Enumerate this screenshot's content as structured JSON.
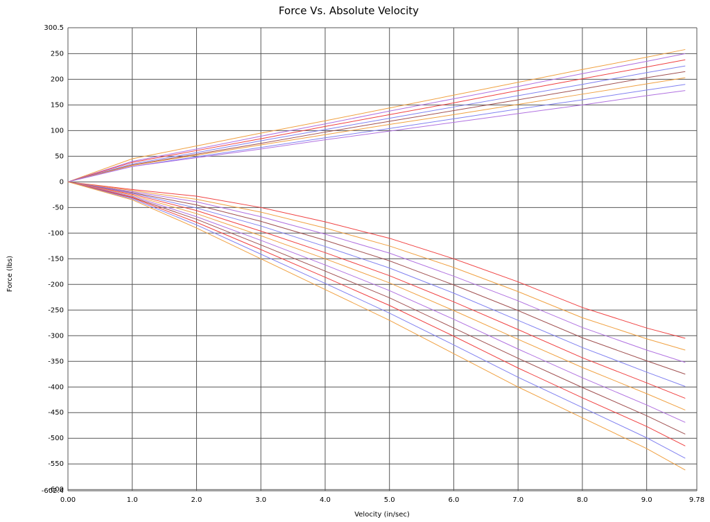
{
  "chart_data": {
    "type": "line",
    "title": "Force Vs. Absolute Velocity",
    "x_label": "Velocity (in/sec)",
    "y_label": "Force (lbs)",
    "grid": true,
    "xlim": [
      0,
      9.78
    ],
    "xticks": [
      {
        "value": 0,
        "label": "0.00"
      },
      {
        "value": 1,
        "label": "1.0"
      },
      {
        "value": 2,
        "label": "2.0"
      },
      {
        "value": 3,
        "label": "3.0"
      },
      {
        "value": 4,
        "label": "4.0"
      },
      {
        "value": 5,
        "label": "5.0"
      },
      {
        "value": 6,
        "label": "6.0"
      },
      {
        "value": 7,
        "label": "7.0"
      },
      {
        "value": 8,
        "label": "8.0"
      },
      {
        "value": 9,
        "label": "9.0"
      },
      9.78
    ],
    "ylim": [
      -602.4,
      300.5
    ],
    "yticks": [
      300.5,
      250,
      200,
      150,
      100,
      50,
      0,
      -50,
      -100,
      -150,
      -200,
      -250,
      -300,
      -350,
      -400,
      -450,
      -500,
      -550,
      -600,
      -602.4
    ],
    "x": [
      0,
      1,
      2,
      3,
      4,
      5,
      6,
      7,
      8,
      9,
      9.6
    ],
    "series": [
      {
        "color": "#f0a040",
        "values": [
          0,
          45,
          70,
          95,
          119,
          144,
          169,
          194,
          219,
          243,
          258
        ]
      },
      {
        "color": "#b070e0",
        "values": [
          0,
          40,
          64,
          89,
          113,
          138,
          162,
          186,
          211,
          235,
          250
        ]
      },
      {
        "color": "#f04040",
        "values": [
          0,
          38,
          61,
          84,
          108,
          131,
          154,
          178,
          201,
          224,
          238
        ]
      },
      {
        "color": "#8080f0",
        "values": [
          0,
          35,
          57,
          80,
          102,
          124,
          146,
          168,
          190,
          213,
          226
        ]
      },
      {
        "color": "#a05050",
        "values": [
          0,
          33,
          54,
          75,
          97,
          118,
          139,
          160,
          181,
          203,
          215
        ]
      },
      {
        "color": "#f0a040",
        "values": [
          0,
          32,
          52,
          72,
          92,
          112,
          131,
          151,
          171,
          191,
          203
        ]
      },
      {
        "color": "#8080f0",
        "values": [
          0,
          30,
          49,
          67,
          86,
          104,
          123,
          142,
          160,
          179,
          190
        ]
      },
      {
        "color": "#b070e0",
        "values": [
          0,
          30,
          47,
          64,
          82,
          99,
          116,
          133,
          150,
          168,
          178
        ]
      },
      {
        "color": "#f04040",
        "values": [
          0,
          -15,
          -28,
          -50,
          -78,
          -110,
          -150,
          -195,
          -245,
          -285,
          -305
        ]
      },
      {
        "color": "#f0a040",
        "values": [
          0,
          -17,
          -34,
          -59,
          -90,
          -125,
          -167,
          -214,
          -265,
          -306,
          -328
        ]
      },
      {
        "color": "#b070e0",
        "values": [
          0,
          -19,
          -39,
          -68,
          -102,
          -139,
          -184,
          -232,
          -284,
          -328,
          -352
        ]
      },
      {
        "color": "#a05050",
        "values": [
          0,
          -21,
          -45,
          -77,
          -114,
          -154,
          -201,
          -251,
          -304,
          -349,
          -375
        ]
      },
      {
        "color": "#8080f0",
        "values": [
          0,
          -22,
          -51,
          -86,
          -126,
          -168,
          -217,
          -270,
          -323,
          -371,
          -399
        ]
      },
      {
        "color": "#f04040",
        "values": [
          0,
          -24,
          -56,
          -96,
          -138,
          -183,
          -234,
          -288,
          -343,
          -392,
          -422
        ]
      },
      {
        "color": "#f0a040",
        "values": [
          0,
          -26,
          -62,
          -105,
          -150,
          -197,
          -251,
          -307,
          -362,
          -413,
          -445
        ]
      },
      {
        "color": "#b070e0",
        "values": [
          0,
          -28,
          -68,
          -114,
          -162,
          -212,
          -268,
          -326,
          -382,
          -435,
          -469
        ]
      },
      {
        "color": "#a05050",
        "values": [
          0,
          -30,
          -73,
          -123,
          -174,
          -226,
          -285,
          -344,
          -401,
          -456,
          -492
        ]
      },
      {
        "color": "#f04040",
        "values": [
          0,
          -31,
          -79,
          -132,
          -186,
          -241,
          -301,
          -363,
          -421,
          -477,
          -515
        ]
      },
      {
        "color": "#8080f0",
        "values": [
          0,
          -33,
          -84,
          -141,
          -198,
          -256,
          -318,
          -381,
          -440,
          -499,
          -539
        ]
      },
      {
        "color": "#f0a040",
        "values": [
          0,
          -35,
          -90,
          -150,
          -210,
          -270,
          -335,
          -400,
          -460,
          -520,
          -562
        ]
      }
    ]
  }
}
